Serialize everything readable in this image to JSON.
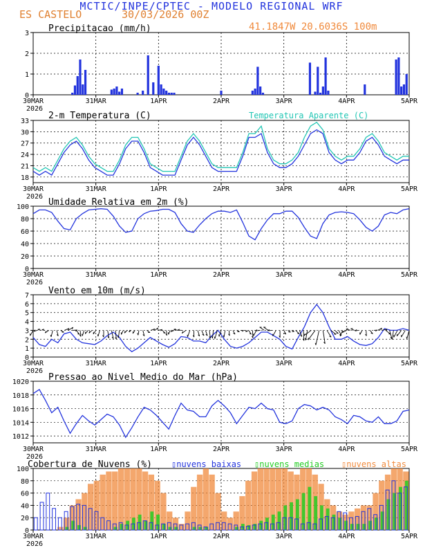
{
  "header": {
    "title": "MCTIC/INPE/CPTEC - MODELO REGIONAL WRF",
    "station": "ES CASTELO",
    "date": "30/03/2026 00Z",
    "coords": "41.1847W 20.6036S 100m"
  },
  "colors": {
    "blue": "#2233dd",
    "cyan": "#22c6b4",
    "orange": "#f08a3c",
    "green": "#22cc22",
    "black": "#000000"
  },
  "x_axis": {
    "ticks": [
      "30MAR",
      "31MAR",
      "1APR",
      "2APR",
      "3APR",
      "4APR",
      "5APR"
    ],
    "year": "2026"
  },
  "chart_data": [
    {
      "id": "precip",
      "type": "bar",
      "title": "Precipitacao (mm/h)",
      "ylim": [
        0,
        3
      ],
      "yticks": [
        "0",
        "1",
        "2",
        "3"
      ],
      "x_hours": [
        15,
        16,
        17,
        18,
        19,
        20,
        30,
        31,
        32,
        33,
        34,
        40,
        42,
        44,
        46,
        48,
        49,
        50,
        51,
        52,
        53,
        54,
        72,
        84,
        85,
        86,
        87,
        88,
        106,
        108,
        109,
        110,
        111,
        112,
        113,
        127,
        139,
        140,
        141,
        142,
        143
      ],
      "values": [
        0.1,
        0.45,
        0.9,
        1.7,
        0.5,
        1.2,
        0.25,
        0.3,
        0.4,
        0.15,
        0.3,
        0.1,
        0.2,
        1.9,
        0.6,
        1.4,
        0.5,
        0.3,
        0.2,
        0.1,
        0.1,
        0.1,
        0.2,
        0.2,
        0.3,
        1.35,
        0.4,
        0.1,
        1.55,
        0.15,
        1.35,
        0.1,
        0.4,
        1.8,
        0.2,
        0.5,
        1.7,
        1.8,
        0.4,
        0.5,
        1.0
      ]
    },
    {
      "id": "temp",
      "type": "line",
      "title": "2-m Temperatura (C)",
      "legend": "Temperatura Aparente (C)",
      "ylim": [
        16.5,
        33
      ],
      "yticks": [
        "18",
        "21",
        "24",
        "27",
        "30",
        "33"
      ],
      "series": [
        {
          "name": "2-m Temperatura (C)",
          "key": "temp",
          "values": [
            19.5,
            18.5,
            19.5,
            18.5,
            21.5,
            24.5,
            26.5,
            27.5,
            25.5,
            22.5,
            20.5,
            19.5,
            18.5,
            18.5,
            21.5,
            25.5,
            27.5,
            27.5,
            24.5,
            20.5,
            19.5,
            18.5,
            18.5,
            18.5,
            22.5,
            26.5,
            28.5,
            26.5,
            23.5,
            20.5,
            19.5,
            19.5,
            19.5,
            19.5,
            23.5,
            28.5,
            28.5,
            29.5,
            24.5,
            21.5,
            20.5,
            20.5,
            21.5,
            23.5,
            26.5,
            29.5,
            30.5,
            29.5,
            24.5,
            22.5,
            21.5,
            22.5,
            22.5,
            24.5,
            27.5,
            28.5,
            26.5,
            23.5,
            22.5,
            21.5,
            22.5,
            22.5
          ]
        },
        {
          "name": "Temperatura Aparente (C)",
          "key": "aparente",
          "values": [
            20.5,
            19.5,
            20.5,
            19.5,
            22.5,
            25.5,
            27.5,
            28.5,
            26.5,
            23.5,
            21.5,
            20.5,
            19.5,
            19.5,
            22.5,
            26.5,
            28.5,
            28.5,
            25.5,
            21.5,
            20.5,
            19.5,
            19.5,
            19.5,
            23.5,
            27.5,
            29.5,
            27.5,
            24.5,
            21.5,
            20.5,
            20.5,
            20.5,
            20.5,
            24.5,
            29.5,
            29.5,
            31.5,
            25.5,
            22.5,
            21.5,
            21.5,
            22.5,
            24.5,
            28.5,
            31.5,
            32.5,
            30.5,
            25.5,
            23.5,
            22.5,
            23.5,
            23.5,
            25.5,
            28.5,
            29.5,
            27.5,
            24.5,
            23.5,
            22.5,
            23.5,
            23.5
          ]
        }
      ]
    },
    {
      "id": "rh",
      "type": "line",
      "title": "Umidade Relativa em 2m (%)",
      "ylim": [
        0,
        100
      ],
      "yticks": [
        "0",
        "20",
        "40",
        "60",
        "80",
        "100"
      ],
      "values": [
        88,
        94,
        94,
        90,
        76,
        64,
        62,
        80,
        88,
        94,
        95,
        96,
        95,
        84,
        68,
        58,
        60,
        80,
        88,
        92,
        93,
        95,
        95,
        90,
        72,
        60,
        58,
        70,
        80,
        88,
        92,
        92,
        90,
        94,
        74,
        52,
        46,
        64,
        78,
        88,
        88,
        92,
        92,
        82,
        66,
        52,
        48,
        72,
        86,
        90,
        91,
        90,
        88,
        78,
        66,
        60,
        68,
        86,
        90,
        88,
        94,
        96
      ]
    },
    {
      "id": "wind",
      "type": "line",
      "title": "Vento em 10m (m/s)",
      "ylim": [
        0,
        7
      ],
      "yticks": [
        "0",
        "1",
        "2",
        "3",
        "4",
        "5",
        "6",
        "7"
      ],
      "values": [
        2.2,
        1.4,
        1.2,
        2.0,
        1.6,
        2.6,
        2.8,
        2.0,
        1.6,
        1.5,
        1.4,
        1.8,
        2.4,
        2.8,
        2.2,
        1.2,
        0.6,
        1.0,
        1.6,
        2.2,
        1.8,
        1.4,
        1.1,
        1.5,
        2.3,
        2.2,
        1.8,
        1.8,
        1.6,
        2.4,
        3.0,
        2.0,
        1.2,
        1.0,
        1.2,
        1.6,
        2.2,
        2.8,
        2.8,
        2.4,
        2.0,
        1.2,
        0.9,
        2.2,
        3.4,
        5.0,
        5.9,
        5.0,
        3.4,
        2.0,
        2.0,
        2.3,
        1.8,
        1.4,
        1.3,
        1.5,
        2.2,
        3.2,
        3.0,
        3.0,
        3.2,
        3.0
      ]
    },
    {
      "id": "pressure",
      "type": "line",
      "title": "Pressao ao Nivel Medio do Mar (hPa)",
      "ylim": [
        1011,
        1020
      ],
      "yticks": [
        "1012",
        "1014",
        "1016",
        "1018",
        "1020"
      ],
      "values": [
        1018.2,
        1018.8,
        1017.2,
        1015.4,
        1016.2,
        1014.2,
        1012.4,
        1013.8,
        1015.0,
        1014.2,
        1013.6,
        1014.4,
        1015.2,
        1014.8,
        1013.6,
        1011.8,
        1013.2,
        1014.8,
        1016.2,
        1015.8,
        1015.0,
        1014.0,
        1013.0,
        1015.0,
        1016.8,
        1015.8,
        1015.6,
        1014.8,
        1014.8,
        1016.4,
        1017.2,
        1016.4,
        1015.4,
        1013.8,
        1015.0,
        1016.2,
        1016.0,
        1016.8,
        1016.0,
        1015.8,
        1014.0,
        1013.8,
        1014.2,
        1016.0,
        1016.6,
        1016.4,
        1015.8,
        1016.2,
        1015.8,
        1014.8,
        1014.4,
        1013.8,
        1015.0,
        1014.8,
        1014.2,
        1014.0,
        1014.8,
        1013.8,
        1013.8,
        1014.2,
        1015.6,
        1015.8
      ]
    },
    {
      "id": "clouds",
      "type": "bar",
      "title": "Cobertura de Nuvens (%)",
      "legend": [
        "nuvens baixas",
        "nuvens medias",
        "nuvens altas"
      ],
      "ylim": [
        0,
        100
      ],
      "yticks": [
        "0",
        "20",
        "40",
        "60",
        "80",
        "100"
      ],
      "series": [
        {
          "name": "nuvens baixas",
          "values": [
            20,
            45,
            60,
            35,
            20,
            30,
            38,
            42,
            40,
            35,
            30,
            20,
            15,
            10,
            12,
            8,
            10,
            12,
            15,
            12,
            8,
            10,
            12,
            10,
            8,
            10,
            12,
            8,
            5,
            10,
            12,
            12,
            10,
            8,
            5,
            6,
            8,
            10,
            12,
            10,
            12,
            20,
            20,
            18,
            10,
            12,
            10,
            18,
            22,
            20,
            30,
            28,
            20,
            22,
            30,
            35,
            25,
            40,
            65,
            80,
            60,
            70
          ]
        },
        {
          "name": "nuvens medias",
          "values": [
            0,
            0,
            0,
            0,
            0,
            5,
            15,
            8,
            5,
            0,
            0,
            0,
            0,
            5,
            10,
            15,
            20,
            25,
            15,
            30,
            25,
            10,
            5,
            5,
            0,
            0,
            5,
            5,
            5,
            0,
            0,
            0,
            0,
            5,
            10,
            8,
            10,
            15,
            20,
            25,
            30,
            40,
            45,
            50,
            60,
            70,
            55,
            40,
            35,
            25,
            20,
            15,
            10,
            10,
            10,
            15,
            20,
            30,
            50,
            60,
            70,
            80
          ]
        },
        {
          "name": "nuvens altas",
          "values": [
            0,
            0,
            0,
            0,
            5,
            20,
            40,
            50,
            60,
            75,
            80,
            90,
            95,
            95,
            100,
            100,
            100,
            100,
            95,
            90,
            80,
            60,
            30,
            20,
            10,
            30,
            70,
            90,
            100,
            90,
            60,
            30,
            20,
            30,
            55,
            80,
            95,
            100,
            100,
            100,
            100,
            100,
            95,
            90,
            100,
            100,
            90,
            75,
            50,
            40,
            30,
            25,
            30,
            35,
            40,
            40,
            60,
            80,
            90,
            100,
            100,
            95
          ]
        }
      ]
    }
  ]
}
